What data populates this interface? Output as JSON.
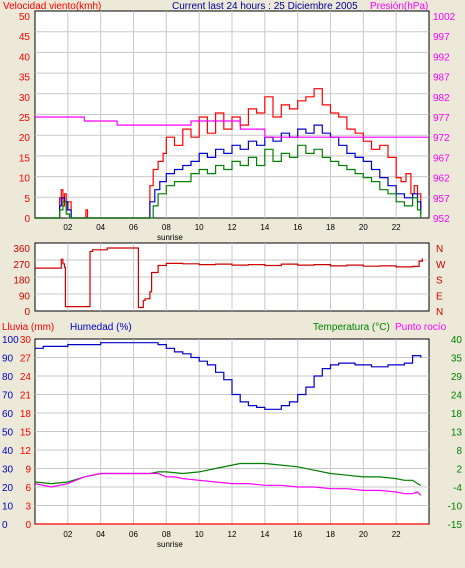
{
  "colors": {
    "background": "#ece9d8",
    "plot_background": "#ffffff",
    "red": "#ff0000",
    "dark_red": "#cc0000",
    "blue": "#0000cc",
    "green": "#008000",
    "magenta": "#ff00ff",
    "title_blue": "#000099",
    "grid": "#c8c8c8"
  },
  "header": {
    "wind_label": "Velocidad viento(kmh)",
    "title": "Current last 24 hours : 25 Diciembre 2005",
    "pressure_label": "Presión(hPa)"
  },
  "footer": {
    "sunrise_top": "sunrise",
    "sunrise_bottom": "sunrise"
  },
  "hour_ticks": [
    "02",
    "04",
    "06",
    "08",
    "10",
    "12",
    "14",
    "16",
    "18",
    "20",
    "22"
  ],
  "bottom_header": {
    "rain_label": "Lluvia (mm)",
    "humidity_label": "Humedad (%)",
    "temperature_label": "Temperatura (°C)",
    "dewpoint_label": "Punto rocío"
  },
  "chart_data": [
    {
      "type": "line",
      "x_label": "hour",
      "x_range": [
        0,
        24
      ],
      "y_left": {
        "label": "Velocidad viento(kmh)",
        "range": [
          0,
          50
        ],
        "ticks": [
          "0",
          "5",
          "10",
          "15",
          "20",
          "25",
          "30",
          "35",
          "40",
          "45",
          "50"
        ]
      },
      "y_right": {
        "label": "Presión(hPa)",
        "range": [
          952,
          1002
        ],
        "ticks": [
          "952",
          "957",
          "962",
          "967",
          "972",
          "977",
          "982",
          "987",
          "992",
          "997",
          "1002"
        ]
      },
      "series": [
        {
          "name": "gust",
          "color": "#ff0000",
          "axis": "left",
          "x": [
            0,
            1.4,
            1.5,
            1.6,
            1.7,
            1.8,
            1.9,
            2.0,
            2.2,
            3.0,
            3.1,
            3.2,
            6.8,
            7.0,
            7.2,
            7.5,
            7.8,
            8.0,
            8.5,
            9.0,
            9.5,
            10.0,
            10.5,
            11.0,
            11.5,
            12.0,
            12.5,
            13.0,
            13.5,
            14.0,
            14.5,
            15.0,
            15.5,
            16.0,
            16.5,
            17.0,
            17.5,
            18.0,
            18.5,
            19.0,
            19.5,
            20.0,
            20.5,
            21.0,
            21.5,
            22.0,
            22.3,
            22.6,
            22.9,
            23.1,
            23.3,
            23.5
          ],
          "y": [
            0,
            0,
            5,
            7,
            3,
            6,
            2,
            4,
            0,
            0,
            2,
            0,
            0,
            8,
            12,
            14,
            16,
            20,
            18,
            22,
            20,
            25,
            21,
            26,
            22,
            25,
            23,
            27,
            26,
            30,
            25,
            28,
            27,
            29,
            30,
            32,
            28,
            26,
            25,
            22,
            21,
            19,
            17,
            18,
            15,
            10,
            9,
            11,
            6,
            8,
            6,
            2
          ]
        },
        {
          "name": "average",
          "color": "#0000cc",
          "axis": "left",
          "x": [
            0,
            1.4,
            1.5,
            1.6,
            1.8,
            2.0,
            2.2,
            6.9,
            7.0,
            7.3,
            7.6,
            8.0,
            8.5,
            9.0,
            9.5,
            10.0,
            10.5,
            11.0,
            11.5,
            12.0,
            12.5,
            13.0,
            13.5,
            14.0,
            14.5,
            15.0,
            15.5,
            16.0,
            16.5,
            17.0,
            17.5,
            18.0,
            18.5,
            19.0,
            19.5,
            20.0,
            20.5,
            21.0,
            21.5,
            22.0,
            22.5,
            23.0,
            23.3,
            23.5
          ],
          "y": [
            0,
            0,
            3,
            5,
            4,
            2,
            0,
            0,
            4,
            7,
            9,
            11,
            12,
            13,
            14,
            16,
            15,
            17,
            16,
            18,
            17,
            19,
            18,
            20,
            19,
            21,
            20,
            22,
            21,
            23,
            21,
            20,
            18,
            16,
            15,
            14,
            12,
            10,
            8,
            6,
            5,
            6,
            4,
            1
          ]
        },
        {
          "name": "min",
          "color": "#008000",
          "axis": "left",
          "x": [
            0,
            1.4,
            1.5,
            1.7,
            1.9,
            2.1,
            7.0,
            7.2,
            7.5,
            8.0,
            8.5,
            9.0,
            9.5,
            10.0,
            10.5,
            11.0,
            11.5,
            12.0,
            12.5,
            13.0,
            13.5,
            14.0,
            14.5,
            15.0,
            15.5,
            16.0,
            16.5,
            17.0,
            17.5,
            18.0,
            18.5,
            19.0,
            19.5,
            20.0,
            20.5,
            21.0,
            21.5,
            22.0,
            22.5,
            23.0,
            23.3,
            23.5
          ],
          "y": [
            0,
            0,
            2,
            4,
            1,
            0,
            0,
            3,
            6,
            8,
            9,
            9,
            11,
            12,
            11,
            13,
            12,
            14,
            13,
            15,
            13,
            17,
            14,
            16,
            15,
            18,
            16,
            17,
            15,
            14,
            13,
            12,
            11,
            10,
            9,
            7,
            6,
            4,
            3,
            5,
            2,
            0
          ]
        },
        {
          "name": "pressure",
          "color": "#ff00ff",
          "axis": "right",
          "x": [
            0,
            3.0,
            3.01,
            5.0,
            5.01,
            9.5,
            9.51,
            12.5,
            12.51,
            14.0,
            14.01,
            24
          ],
          "y": [
            977,
            977,
            976,
            976,
            975,
            975,
            976,
            976,
            974,
            974,
            972,
            972
          ]
        }
      ]
    },
    {
      "type": "line",
      "x_range": [
        0,
        24
      ],
      "y_left": {
        "range": [
          0,
          360
        ],
        "ticks": [
          "360",
          "270",
          "180",
          "90",
          "0"
        ]
      },
      "y_right": {
        "ticks": [
          "N",
          "W",
          "S",
          "E",
          "N"
        ]
      },
      "series": [
        {
          "name": "wind_direction",
          "color": "#cc0000",
          "x": [
            0,
            1.5,
            1.6,
            1.7,
            1.8,
            1.85,
            3.3,
            3.35,
            3.5,
            4.3,
            4.4,
            6.2,
            6.3,
            6.6,
            6.7,
            7.0,
            7.1,
            7.5,
            8.0,
            9,
            10,
            11,
            12,
            13,
            14,
            15,
            16,
            17,
            18,
            19,
            20,
            21,
            22,
            23,
            23.4,
            23.6
          ],
          "y": [
            245,
            245,
            295,
            270,
            250,
            25,
            25,
            340,
            350,
            350,
            360,
            360,
            20,
            60,
            70,
            110,
            220,
            260,
            272,
            270,
            265,
            268,
            262,
            265,
            260,
            268,
            262,
            265,
            258,
            262,
            256,
            258,
            252,
            255,
            285,
            300
          ]
        }
      ]
    },
    {
      "type": "line",
      "x_range": [
        0,
        24
      ],
      "y_rain": {
        "label": "Lluvia (mm)",
        "range": [
          0,
          30
        ],
        "ticks": [
          "0",
          "3",
          "6",
          "9",
          "12",
          "15",
          "18",
          "21",
          "24",
          "27",
          "30"
        ]
      },
      "y_humidity": {
        "label": "Humedad (%)",
        "range": [
          0,
          100
        ],
        "ticks": [
          "0",
          "10",
          "20",
          "30",
          "40",
          "50",
          "60",
          "70",
          "80",
          "90",
          "100"
        ]
      },
      "y_temp": {
        "label": "Temperatura (°C)",
        "range": [
          -15,
          40
        ],
        "ticks": [
          "-15",
          "-10",
          "-4",
          "2",
          "8",
          "13",
          "18",
          "24",
          "29",
          "35",
          "40"
        ]
      },
      "series": [
        {
          "name": "Lluvia (mm)",
          "color": "#ff0000",
          "axis": "rain",
          "x": [
            0,
            24
          ],
          "y": [
            0,
            0
          ]
        },
        {
          "name": "Humedad (%)",
          "color": "#0000cc",
          "axis": "humidity",
          "x": [
            0,
            0.5,
            1,
            2,
            3,
            4,
            5,
            6,
            7,
            7.5,
            8,
            8.5,
            9,
            9.5,
            10,
            10.5,
            11,
            11.5,
            12,
            12.5,
            13,
            13.5,
            14,
            14.5,
            15,
            15.5,
            16,
            16.5,
            17,
            17.5,
            18,
            18.5,
            19,
            19.5,
            20,
            20.5,
            21,
            21.5,
            22,
            22.5,
            23,
            23.3,
            23.5
          ],
          "y": [
            95,
            96,
            96,
            97,
            97,
            98,
            98,
            98,
            98,
            97,
            95,
            93,
            92,
            90,
            88,
            86,
            82,
            78,
            70,
            66,
            64,
            63,
            62,
            62,
            64,
            66,
            70,
            74,
            80,
            84,
            86,
            87,
            87,
            86,
            86,
            85,
            85,
            86,
            86,
            87,
            91,
            91,
            90
          ]
        },
        {
          "name": "Temperatura (°C)",
          "color": "#008000",
          "axis": "temp",
          "x": [
            0,
            1,
            2,
            3,
            4,
            5,
            6,
            7,
            7.5,
            8,
            9,
            10,
            11,
            12,
            12.5,
            13,
            14,
            15,
            16,
            17,
            18,
            19,
            20,
            21,
            22,
            22.5,
            23,
            23.3,
            23.5
          ],
          "y": [
            -2.5,
            -3,
            -2.5,
            -1,
            0,
            0,
            0,
            0,
            0.5,
            0.5,
            0,
            0.5,
            1.5,
            2.5,
            3,
            3,
            3,
            2.5,
            2,
            1,
            0,
            -0.5,
            -1,
            -1,
            -1.5,
            -2,
            -2,
            -3,
            -3.5
          ]
        },
        {
          "name": "Punto rocío",
          "color": "#ff00ff",
          "axis": "temp",
          "x": [
            0,
            1,
            2,
            3,
            4,
            5,
            6,
            7,
            7.5,
            8,
            8.5,
            9,
            10,
            11,
            12,
            13,
            14,
            15,
            16,
            17,
            18,
            19,
            20,
            21,
            22,
            22.5,
            23,
            23.3,
            23.5
          ],
          "y": [
            -3,
            -4,
            -3,
            -1,
            0,
            0,
            0,
            0,
            0,
            -1,
            -1,
            -1.5,
            -2,
            -2.5,
            -3,
            -3,
            -3.5,
            -3.5,
            -4,
            -4,
            -4.5,
            -4.5,
            -5,
            -5,
            -5.5,
            -6,
            -6,
            -5.5,
            -6.5
          ]
        }
      ]
    }
  ]
}
